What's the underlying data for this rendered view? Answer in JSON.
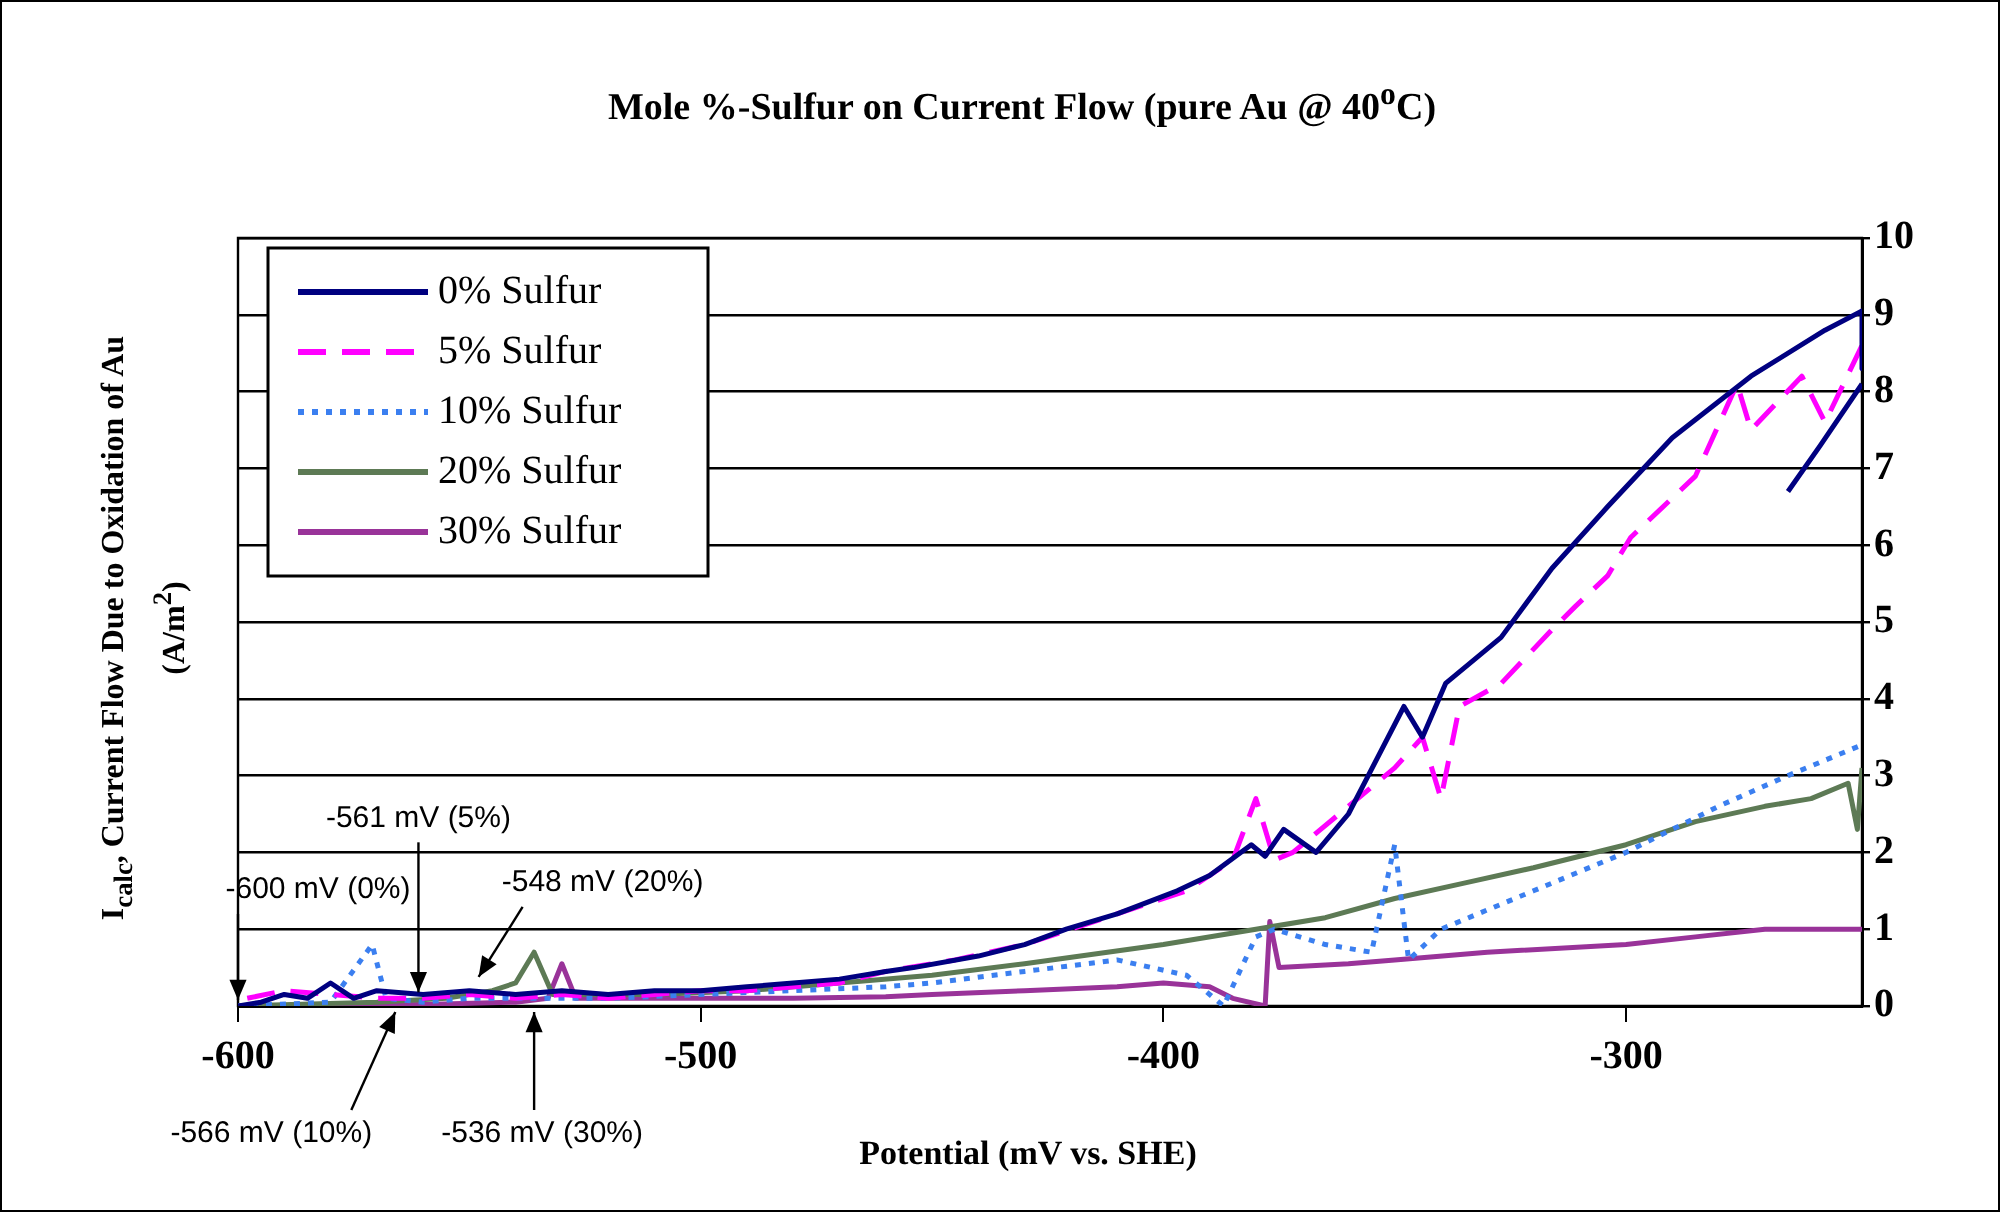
{
  "chart_data": {
    "type": "line",
    "title": "Mole %-Sulfur on Current Flow (pure Au @ 40$^{o}$C)",
    "xlabel": "Potential (mV vs. SHE)",
    "ylabel": "I$_{calc}$, Current Flow Due to Oxidation of Au (A/m$^{2}$)",
    "xlim": [
      -600,
      -249
    ],
    "xticks": [
      -600,
      -500,
      -400,
      -300
    ],
    "ylim": [
      0,
      10
    ],
    "yticks": [
      0,
      1,
      2,
      3,
      4,
      5,
      6,
      7,
      8,
      9,
      10
    ],
    "grid": "y",
    "legend": "top left",
    "marker": "none",
    "series": [
      {
        "name": "0% Sulfur",
        "color": "#000080",
        "line_style": "solid",
        "x": [
          -600,
          -595,
          -590,
          -585,
          -580,
          -575,
          -570,
          -560,
          -550,
          -540,
          -530,
          -520,
          -510,
          -500,
          -490,
          -480,
          -470,
          -460,
          -454,
          -440,
          -430,
          -421,
          -410,
          -397,
          -390,
          -381,
          -378,
          -374,
          -367,
          -360,
          -348,
          -344,
          -339,
          -327,
          -316,
          -304,
          -290,
          -273,
          -257,
          -249,
          -249
        ],
        "values": [
          0,
          0.05,
          0.15,
          0.1,
          0.3,
          0.1,
          0.2,
          0.15,
          0.2,
          0.15,
          0.2,
          0.15,
          0.2,
          0.2,
          0.25,
          0.3,
          0.35,
          0.45,
          0.5,
          0.65,
          0.8,
          1.0,
          1.2,
          1.5,
          1.7,
          2.1,
          1.95,
          2.3,
          2.0,
          2.5,
          3.9,
          3.5,
          4.2,
          4.8,
          5.7,
          6.5,
          7.4,
          8.2,
          8.8,
          9.05,
          8.3
        ]
      },
      {
        "color": "#000080",
        "line_style": "solid",
        "x": [
          -265,
          -258,
          -249
        ],
        "values": [
          6.7,
          7.3,
          8.1
        ]
      },
      {
        "name": "5% Sulfur",
        "color": "#ff00ff",
        "line_style": "dashed",
        "x": [
          -598,
          -590,
          -580,
          -570,
          -560,
          -550,
          -540,
          -530,
          -520,
          -510,
          -500,
          -490,
          -480,
          -470,
          -460,
          -445,
          -430,
          -420,
          -410,
          -395,
          -385,
          -380,
          -376,
          -372,
          -360,
          -350,
          -344,
          -340,
          -336,
          -327,
          -316,
          -311,
          -304,
          -299,
          -285,
          -276,
          -273,
          -262,
          -257,
          -249
        ],
        "values": [
          0.1,
          0.2,
          0.15,
          0.1,
          0.1,
          0.15,
          0.1,
          0.15,
          0.1,
          0.15,
          0.2,
          0.2,
          0.25,
          0.3,
          0.45,
          0.6,
          0.8,
          1.0,
          1.2,
          1.5,
          1.9,
          2.7,
          1.9,
          2.0,
          2.6,
          3.1,
          3.5,
          2.7,
          3.9,
          4.2,
          4.9,
          5.2,
          5.6,
          6.1,
          6.9,
          8.1,
          7.5,
          8.2,
          7.6,
          8.6
        ]
      },
      {
        "name": "10% Sulfur",
        "color": "#3b7ff0",
        "line_style": "dotted",
        "x": [
          -600,
          -580,
          -571,
          -568,
          -560,
          -550,
          -540,
          -520,
          -500,
          -480,
          -460,
          -450,
          -430,
          -410,
          -395,
          -387,
          -380,
          -376,
          -365,
          -355,
          -350,
          -347,
          -340,
          -320,
          -300,
          -280,
          -265,
          -249
        ],
        "values": [
          0,
          0.05,
          0.8,
          0.1,
          0.05,
          0.1,
          0.1,
          0.1,
          0.15,
          0.2,
          0.25,
          0.3,
          0.45,
          0.6,
          0.4,
          0,
          0.9,
          1.0,
          0.8,
          0.7,
          2.1,
          0.6,
          1.0,
          1.5,
          2.0,
          2.6,
          3.0,
          3.4
        ]
      },
      {
        "name": "20% Sulfur",
        "color": "#5d7a55",
        "line_style": "solid",
        "x": [
          -600,
          -570,
          -555,
          -545,
          -540,
          -536,
          -532,
          -525,
          -510,
          -490,
          -470,
          -450,
          -430,
          -400,
          -380,
          -365,
          -350,
          -335,
          -320,
          -300,
          -285,
          -270,
          -260,
          -252,
          -250,
          -249
        ],
        "values": [
          0,
          0.05,
          0.1,
          0.2,
          0.3,
          0.7,
          0.15,
          0.15,
          0.15,
          0.2,
          0.3,
          0.4,
          0.55,
          0.8,
          1.0,
          1.15,
          1.4,
          1.6,
          1.8,
          2.1,
          2.4,
          2.6,
          2.7,
          2.9,
          2.3,
          3.1
        ]
      },
      {
        "name": "30% Sulfur",
        "color": "#993399",
        "line_style": "solid",
        "x": [
          -600,
          -560,
          -540,
          -533,
          -530,
          -527,
          -520,
          -500,
          -480,
          -460,
          -450,
          -430,
          -410,
          -400,
          -390,
          -385,
          -378,
          -377,
          -375,
          -360,
          -350,
          -330,
          -300,
          -285,
          -270,
          -249
        ],
        "values": [
          0,
          0.02,
          0.05,
          0.1,
          0.55,
          0.1,
          0.1,
          0.1,
          0.1,
          0.12,
          0.15,
          0.2,
          0.25,
          0.3,
          0.25,
          0.1,
          0,
          1.1,
          0.5,
          0.55,
          0.6,
          0.7,
          0.8,
          0.9,
          1.0,
          1.0
        ]
      }
    ],
    "annotations": [
      {
        "text": "-600 mV (0%)",
        "x": -600,
        "y": 0
      },
      {
        "text": "-561 mV (5%)",
        "x": -561,
        "y": 0.1
      },
      {
        "text": "-548 mV (20%)",
        "x": -548,
        "y": 0.3
      },
      {
        "text": "-566 mV (10%)",
        "x": -566,
        "y": 0
      },
      {
        "text": "-536 mV (30%)",
        "x": -536,
        "y": 0
      }
    ]
  }
}
